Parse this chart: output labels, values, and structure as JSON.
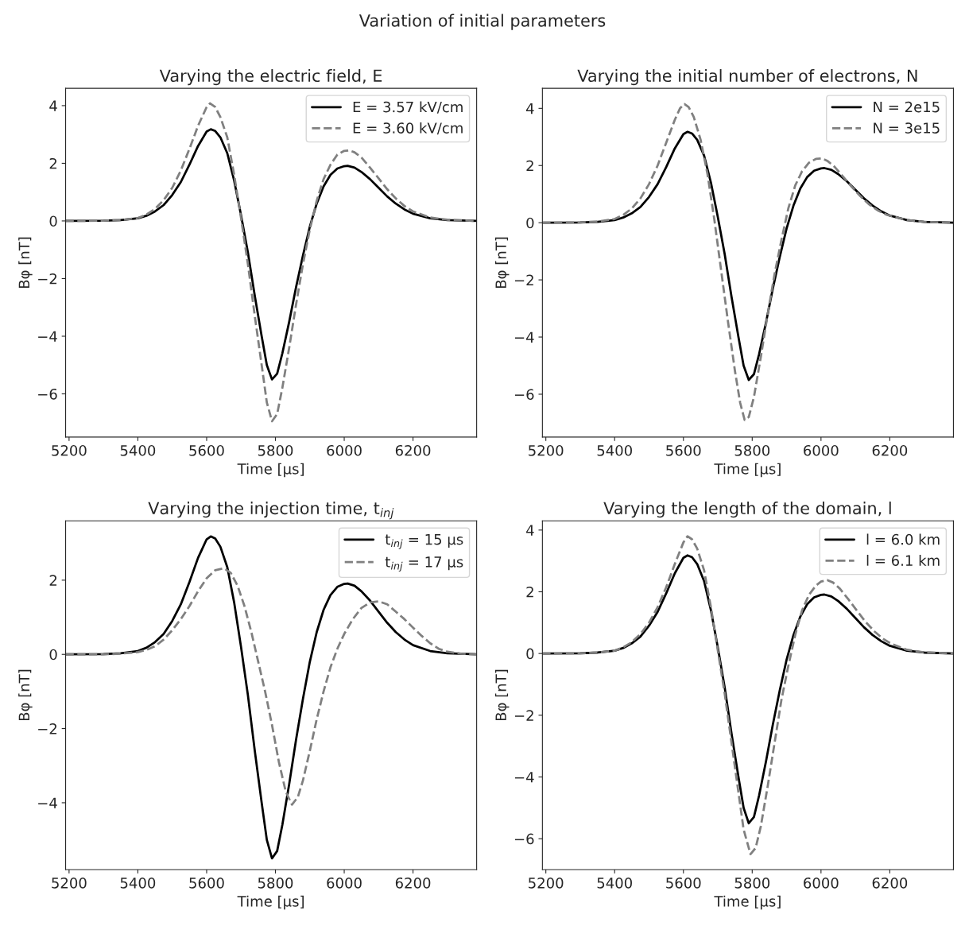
{
  "chart_data": [
    {
      "type": "line",
      "title": "Varying the electric field, E",
      "annotations": [
        "Variation of initial parameters"
      ],
      "xlabel": "Time [μs]",
      "ylabel": "Bφ [nT]",
      "xlim": [
        5190,
        6385
      ],
      "xticks": [
        5200,
        5400,
        5600,
        5800,
        6000,
        6200
      ],
      "ylim": [
        -7.5,
        4.6
      ],
      "yticks": [
        {
          "value": -6,
          "label": "−6"
        },
        {
          "value": -4,
          "label": "−4"
        },
        {
          "value": -2,
          "label": "−2"
        },
        0,
        2,
        4
      ],
      "grid": false,
      "legend": "top right",
      "series": [
        {
          "name": "E = 3.57 kV/cm",
          "color": "#000000",
          "line_style": "solid",
          "x": [
            5190,
            5300,
            5350,
            5400,
            5425,
            5450,
            5475,
            5500,
            5525,
            5550,
            5575,
            5600,
            5612,
            5625,
            5640,
            5660,
            5680,
            5700,
            5720,
            5740,
            5760,
            5775,
            5790,
            5805,
            5820,
            5840,
            5860,
            5880,
            5900,
            5920,
            5940,
            5960,
            5980,
            6000,
            6010,
            6030,
            6050,
            6075,
            6100,
            6125,
            6150,
            6175,
            6200,
            6250,
            6300,
            6385
          ],
          "values": [
            0,
            0.01,
            0.03,
            0.09,
            0.18,
            0.33,
            0.55,
            0.9,
            1.35,
            1.95,
            2.6,
            3.1,
            3.18,
            3.12,
            2.9,
            2.35,
            1.4,
            0.2,
            -1.1,
            -2.6,
            -4.0,
            -5.0,
            -5.5,
            -5.3,
            -4.6,
            -3.5,
            -2.3,
            -1.2,
            -0.2,
            0.6,
            1.2,
            1.6,
            1.82,
            1.9,
            1.91,
            1.85,
            1.7,
            1.45,
            1.15,
            0.85,
            0.6,
            0.4,
            0.25,
            0.09,
            0.03,
            0
          ]
        },
        {
          "name": "E = 3.60 kV/cm",
          "color": "#808080",
          "line_style": "dashed",
          "x": [
            5190,
            5300,
            5350,
            5400,
            5425,
            5450,
            5475,
            5500,
            5525,
            5550,
            5575,
            5600,
            5610,
            5625,
            5640,
            5660,
            5680,
            5700,
            5720,
            5740,
            5760,
            5775,
            5790,
            5805,
            5820,
            5840,
            5860,
            5880,
            5900,
            5920,
            5940,
            5960,
            5980,
            6000,
            6015,
            6030,
            6050,
            6075,
            6100,
            6125,
            6150,
            6175,
            6200,
            6250,
            6300,
            6385
          ],
          "values": [
            0,
            0.01,
            0.03,
            0.1,
            0.22,
            0.42,
            0.72,
            1.15,
            1.75,
            2.5,
            3.3,
            3.95,
            4.08,
            3.95,
            3.6,
            2.9,
            1.6,
            0.1,
            -1.5,
            -3.3,
            -5.0,
            -6.3,
            -6.95,
            -6.7,
            -5.8,
            -4.4,
            -2.9,
            -1.5,
            -0.3,
            0.7,
            1.45,
            1.95,
            2.3,
            2.43,
            2.45,
            2.38,
            2.2,
            1.85,
            1.48,
            1.1,
            0.78,
            0.52,
            0.33,
            0.12,
            0.04,
            0
          ]
        }
      ]
    },
    {
      "type": "line",
      "title": "Varying the initial number of electrons, N",
      "xlabel": "Time [μs]",
      "ylabel": "Bφ [nT]",
      "xlim": [
        5190,
        6385
      ],
      "xticks": [
        5200,
        5400,
        5600,
        5800,
        6000,
        6200
      ],
      "ylim": [
        -7.5,
        4.7
      ],
      "yticks": [
        {
          "value": -6,
          "label": "−6"
        },
        {
          "value": -4,
          "label": "−4"
        },
        {
          "value": -2,
          "label": "−2"
        },
        0,
        2,
        4
      ],
      "grid": false,
      "legend": "top right",
      "series": [
        {
          "name": "N = 2e15",
          "color": "#000000",
          "line_style": "solid",
          "x": [
            5190,
            5300,
            5350,
            5400,
            5425,
            5450,
            5475,
            5500,
            5525,
            5550,
            5575,
            5600,
            5612,
            5625,
            5640,
            5660,
            5680,
            5700,
            5720,
            5740,
            5760,
            5775,
            5790,
            5805,
            5820,
            5840,
            5860,
            5880,
            5900,
            5920,
            5940,
            5960,
            5980,
            6000,
            6010,
            6030,
            6050,
            6075,
            6100,
            6125,
            6150,
            6175,
            6200,
            6250,
            6300,
            6385
          ],
          "values": [
            0,
            0.01,
            0.03,
            0.09,
            0.18,
            0.33,
            0.55,
            0.9,
            1.35,
            1.95,
            2.6,
            3.1,
            3.18,
            3.12,
            2.9,
            2.35,
            1.4,
            0.2,
            -1.1,
            -2.6,
            -4.0,
            -5.0,
            -5.5,
            -5.3,
            -4.6,
            -3.5,
            -2.3,
            -1.2,
            -0.2,
            0.6,
            1.2,
            1.6,
            1.82,
            1.9,
            1.91,
            1.85,
            1.7,
            1.45,
            1.15,
            0.85,
            0.6,
            0.4,
            0.25,
            0.09,
            0.03,
            0
          ]
        },
        {
          "name": "N = 3e15",
          "color": "#808080",
          "line_style": "dashed",
          "x": [
            5190,
            5300,
            5350,
            5400,
            5425,
            5450,
            5475,
            5500,
            5525,
            5550,
            5575,
            5590,
            5603,
            5615,
            5630,
            5650,
            5670,
            5690,
            5710,
            5730,
            5750,
            5765,
            5778,
            5790,
            5805,
            5825,
            5845,
            5865,
            5885,
            5905,
            5925,
            5945,
            5965,
            5985,
            6003,
            6020,
            6040,
            6065,
            6090,
            6115,
            6140,
            6165,
            6190,
            6250,
            6300,
            6385
          ],
          "values": [
            0,
            0.01,
            0.04,
            0.13,
            0.27,
            0.5,
            0.85,
            1.35,
            2.0,
            2.8,
            3.6,
            4.0,
            4.15,
            4.05,
            3.7,
            2.9,
            1.7,
            0.1,
            -1.7,
            -3.5,
            -5.2,
            -6.3,
            -6.9,
            -6.8,
            -6.1,
            -4.7,
            -3.2,
            -1.8,
            -0.6,
            0.5,
            1.3,
            1.8,
            2.1,
            2.23,
            2.25,
            2.15,
            1.95,
            1.6,
            1.25,
            0.92,
            0.64,
            0.43,
            0.28,
            0.09,
            0.03,
            0
          ]
        }
      ]
    },
    {
      "type": "line",
      "title": "Varying the injection time, t$_{inj}$",
      "xlabel": "Time [μs]",
      "ylabel": "Bφ [nT]",
      "xlim": [
        5190,
        6385
      ],
      "xticks": [
        5200,
        5400,
        5600,
        5800,
        6000,
        6200
      ],
      "ylim": [
        -5.8,
        3.6
      ],
      "yticks": [
        {
          "value": -4,
          "label": "−4"
        },
        {
          "value": -2,
          "label": "−2"
        },
        0,
        2
      ],
      "grid": false,
      "legend": "top right",
      "series": [
        {
          "name": "t$_{inj}$ = 15 μs",
          "color": "#000000",
          "line_style": "solid",
          "x": [
            5190,
            5300,
            5350,
            5400,
            5425,
            5450,
            5475,
            5500,
            5525,
            5550,
            5575,
            5600,
            5612,
            5625,
            5640,
            5660,
            5680,
            5700,
            5720,
            5740,
            5760,
            5775,
            5790,
            5805,
            5820,
            5840,
            5860,
            5880,
            5900,
            5920,
            5940,
            5960,
            5980,
            6000,
            6010,
            6030,
            6050,
            6075,
            6100,
            6125,
            6150,
            6175,
            6200,
            6250,
            6300,
            6385
          ],
          "values": [
            0,
            0.01,
            0.03,
            0.09,
            0.18,
            0.33,
            0.55,
            0.9,
            1.35,
            1.95,
            2.6,
            3.1,
            3.18,
            3.12,
            2.9,
            2.35,
            1.4,
            0.2,
            -1.1,
            -2.6,
            -4.0,
            -5.0,
            -5.5,
            -5.3,
            -4.6,
            -3.5,
            -2.3,
            -1.2,
            -0.2,
            0.6,
            1.2,
            1.6,
            1.82,
            1.9,
            1.91,
            1.85,
            1.7,
            1.45,
            1.15,
            0.85,
            0.6,
            0.4,
            0.25,
            0.09,
            0.03,
            0
          ]
        },
        {
          "name": "t$_{inj}$ = 17 μs",
          "color": "#808080",
          "line_style": "dashed",
          "x": [
            5190,
            5300,
            5350,
            5400,
            5425,
            5450,
            5475,
            5500,
            5525,
            5550,
            5575,
            5600,
            5625,
            5650,
            5670,
            5690,
            5710,
            5730,
            5750,
            5770,
            5790,
            5810,
            5830,
            5848,
            5865,
            5880,
            5900,
            5920,
            5940,
            5960,
            5980,
            6000,
            6025,
            6050,
            6075,
            6100,
            6125,
            6150,
            6175,
            6200,
            6225,
            6250,
            6275,
            6300,
            6340,
            6385
          ],
          "values": [
            0,
            0,
            0.02,
            0.06,
            0.12,
            0.22,
            0.4,
            0.65,
            0.95,
            1.3,
            1.7,
            2.05,
            2.27,
            2.32,
            2.2,
            1.85,
            1.3,
            0.6,
            -0.2,
            -1.0,
            -1.9,
            -2.9,
            -3.7,
            -4.05,
            -3.85,
            -3.4,
            -2.6,
            -1.75,
            -1.0,
            -0.35,
            0.15,
            0.55,
            0.95,
            1.25,
            1.4,
            1.43,
            1.35,
            1.15,
            0.95,
            0.72,
            0.5,
            0.3,
            0.15,
            0.07,
            0.02,
            0
          ]
        }
      ]
    },
    {
      "type": "line",
      "title": "Varying the length of the domain, l",
      "xlabel": "Time [μs]",
      "ylabel": "Bφ [nT]",
      "xlim": [
        5190,
        6385
      ],
      "xticks": [
        5200,
        5400,
        5600,
        5800,
        6000,
        6200
      ],
      "ylim": [
        -7.0,
        4.3
      ],
      "yticks": [
        {
          "value": -6,
          "label": "−6"
        },
        {
          "value": -4,
          "label": "−4"
        },
        {
          "value": -2,
          "label": "−2"
        },
        0,
        2,
        4
      ],
      "grid": false,
      "legend": "top right",
      "series": [
        {
          "name": "l = 6.0 km",
          "color": "#000000",
          "line_style": "solid",
          "x": [
            5190,
            5300,
            5350,
            5400,
            5425,
            5450,
            5475,
            5500,
            5525,
            5550,
            5575,
            5600,
            5612,
            5625,
            5640,
            5660,
            5680,
            5700,
            5720,
            5740,
            5760,
            5775,
            5790,
            5805,
            5820,
            5840,
            5860,
            5880,
            5900,
            5920,
            5940,
            5960,
            5980,
            6000,
            6010,
            6030,
            6050,
            6075,
            6100,
            6125,
            6150,
            6175,
            6200,
            6250,
            6300,
            6385
          ],
          "values": [
            0,
            0.01,
            0.03,
            0.09,
            0.18,
            0.33,
            0.55,
            0.9,
            1.35,
            1.95,
            2.6,
            3.1,
            3.18,
            3.12,
            2.9,
            2.35,
            1.4,
            0.2,
            -1.1,
            -2.6,
            -4.0,
            -5.0,
            -5.5,
            -5.3,
            -4.6,
            -3.5,
            -2.3,
            -1.2,
            -0.2,
            0.6,
            1.2,
            1.6,
            1.82,
            1.9,
            1.91,
            1.85,
            1.7,
            1.45,
            1.15,
            0.85,
            0.6,
            0.4,
            0.25,
            0.09,
            0.03,
            0
          ]
        },
        {
          "name": "l = 6.1 km",
          "color": "#808080",
          "line_style": "dashed",
          "x": [
            5190,
            5300,
            5350,
            5400,
            5425,
            5450,
            5475,
            5500,
            5525,
            5550,
            5575,
            5600,
            5612,
            5625,
            5640,
            5660,
            5680,
            5700,
            5720,
            5740,
            5760,
            5775,
            5795,
            5810,
            5825,
            5845,
            5865,
            5885,
            5905,
            5925,
            5945,
            5965,
            5985,
            6000,
            6018,
            6035,
            6055,
            6080,
            6105,
            6130,
            6155,
            6180,
            6205,
            6250,
            6300,
            6385
          ],
          "values": [
            0,
            0.01,
            0.03,
            0.09,
            0.2,
            0.37,
            0.63,
            1.0,
            1.5,
            2.15,
            2.9,
            3.6,
            3.8,
            3.7,
            3.4,
            2.7,
            1.5,
            0.1,
            -1.3,
            -2.9,
            -4.5,
            -5.7,
            -6.5,
            -6.3,
            -5.6,
            -4.3,
            -2.9,
            -1.5,
            -0.4,
            0.6,
            1.4,
            1.9,
            2.2,
            2.33,
            2.38,
            2.3,
            2.1,
            1.75,
            1.38,
            1.02,
            0.72,
            0.48,
            0.31,
            0.12,
            0.04,
            0
          ]
        }
      ]
    }
  ]
}
